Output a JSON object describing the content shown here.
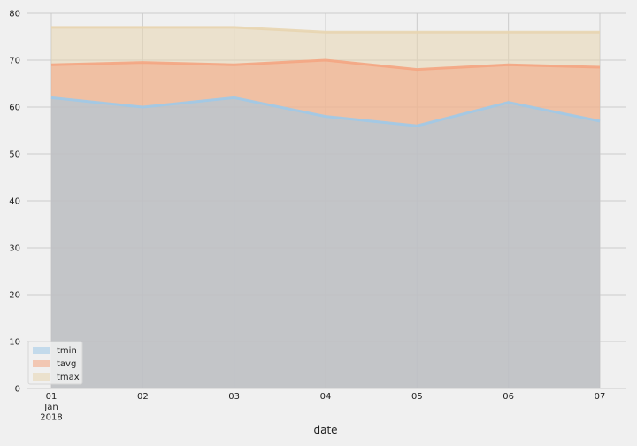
{
  "chart_data": {
    "type": "area",
    "xlabel": "date",
    "x": [
      "01",
      "02",
      "03",
      "04",
      "05",
      "06",
      "07"
    ],
    "x_sublabels": [
      "Jan",
      "2018"
    ],
    "ylim": [
      0,
      80
    ],
    "yticks": [
      0,
      10,
      20,
      30,
      40,
      50,
      60,
      70,
      80
    ],
    "grid": true,
    "legend_position": "lower-left",
    "series": [
      {
        "name": "tmin",
        "values": [
          62,
          60,
          62,
          58,
          56,
          61,
          57
        ],
        "color": "#9ec9e8"
      },
      {
        "name": "tavg",
        "values": [
          69,
          69.5,
          69,
          70,
          68,
          69,
          68.5
        ],
        "color": "#f4a582"
      },
      {
        "name": "tmax",
        "values": [
          77,
          77,
          77,
          76,
          76,
          76,
          76
        ],
        "color": "#e8d5b0"
      }
    ]
  }
}
